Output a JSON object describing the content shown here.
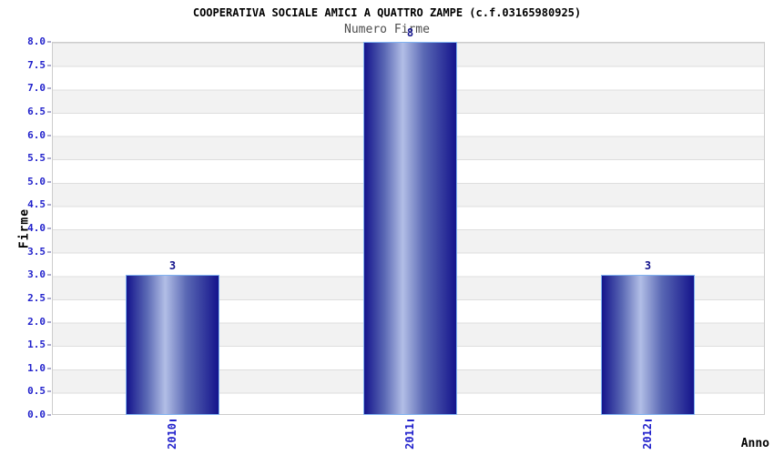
{
  "chart_data": {
    "type": "bar",
    "title": "COOPERATIVA SOCIALE AMICI A QUATTRO ZAMPE (c.f.03165980925)",
    "subtitle": "Numero Firme",
    "categories": [
      "2010",
      "2011",
      "2012"
    ],
    "values": [
      3,
      8,
      3
    ],
    "value_labels": [
      "3",
      "8",
      "3"
    ],
    "xlabel": "Anno",
    "ylabel": "Firme",
    "ylim": [
      0,
      8
    ],
    "ytick_step": 0.5,
    "ytick_format_decimals": 1,
    "grid": "horizontal-bands-alternating",
    "legend": "none",
    "colors": {
      "bar_edge_dark": "#14148c",
      "bar_center_highlight": "#b2bee6",
      "bar_border": "#7fb2f0",
      "tick_label": "#2222cc",
      "value_label": "#14148c",
      "axis_title": "#000000",
      "title": "#000000",
      "subtitle": "#4d4d4d",
      "band_gray": "#f2f2f2",
      "band_white": "#ffffff",
      "gridline": "#dedede",
      "plot_border": "#cccccc",
      "y_tick_mark": "#aaaacc"
    }
  }
}
